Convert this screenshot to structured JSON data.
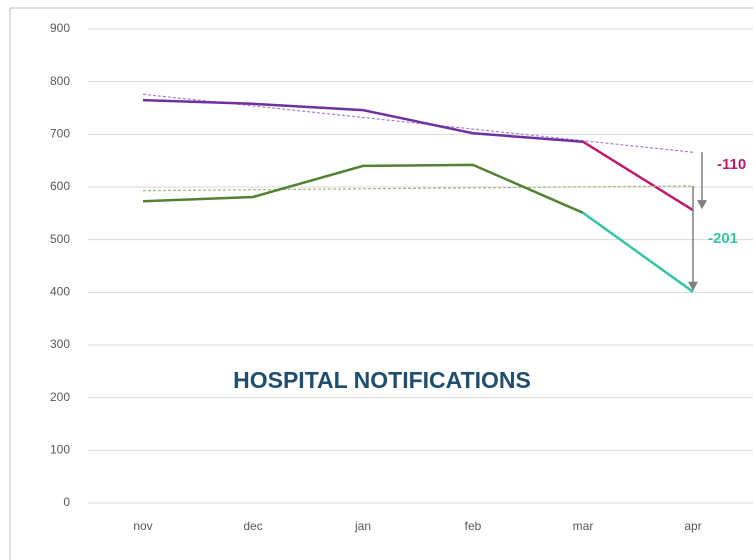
{
  "chart_data": {
    "type": "line",
    "title": "HOSPITAL NOTIFICATIONS",
    "categories": [
      "nov",
      "dec",
      "jan",
      "feb",
      "mar",
      "apr"
    ],
    "ylim": [
      0,
      900
    ],
    "yticks": [
      0,
      100,
      200,
      300,
      400,
      500,
      600,
      700,
      800,
      900
    ],
    "grid": true,
    "series": [
      {
        "color": "#7030a0",
        "highlight_color": "#c0186a",
        "values": [
          765,
          758,
          746,
          702,
          686,
          556
        ],
        "trend": [
          776,
          666
        ],
        "trend_color": "#a77fd0",
        "annotation": {
          "text": "-110",
          "from": 666,
          "to": 556
        }
      },
      {
        "color": "#548235",
        "highlight_color": "#35c4a4",
        "values": [
          573,
          581,
          640,
          642,
          551,
          401
        ],
        "trend": [
          593,
          602
        ],
        "trend_color": "#9cbc7c",
        "annotation": {
          "text": "-201",
          "from": 602,
          "to": 401
        }
      }
    ]
  }
}
